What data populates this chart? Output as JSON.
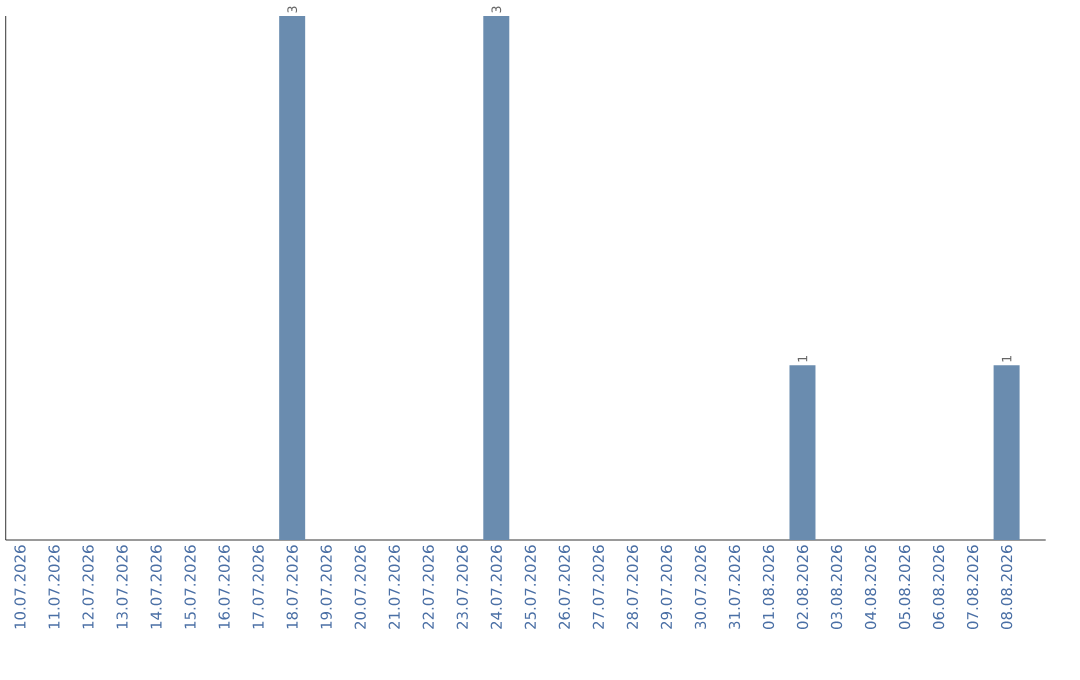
{
  "chart_data": {
    "type": "bar",
    "categories": [
      "10.07.2026",
      "11.07.2026",
      "12.07.2026",
      "13.07.2026",
      "14.07.2026",
      "15.07.2026",
      "16.07.2026",
      "17.07.2026",
      "18.07.2026",
      "19.07.2026",
      "20.07.2026",
      "21.07.2026",
      "22.07.2026",
      "23.07.2026",
      "24.07.2026",
      "25.07.2026",
      "26.07.2026",
      "27.07.2026",
      "28.07.2026",
      "29.07.2026",
      "30.07.2026",
      "31.07.2026",
      "01.08.2026",
      "02.08.2026",
      "03.08.2026",
      "04.08.2026",
      "05.08.2026",
      "06.08.2026",
      "07.08.2026",
      "08.08.2026"
    ],
    "values": [
      0,
      0,
      0,
      0,
      0,
      0,
      0,
      0,
      3,
      0,
      0,
      0,
      0,
      0,
      3,
      0,
      0,
      0,
      0,
      0,
      0,
      0,
      0,
      1,
      0,
      0,
      0,
      0,
      0,
      1
    ],
    "value_labels": [
      null,
      null,
      null,
      null,
      null,
      null,
      null,
      null,
      "3",
      null,
      null,
      null,
      null,
      null,
      "3",
      null,
      null,
      null,
      null,
      null,
      null,
      null,
      null,
      "1",
      null,
      null,
      null,
      null,
      null,
      "1"
    ],
    "color": "#6a8caf"
  }
}
